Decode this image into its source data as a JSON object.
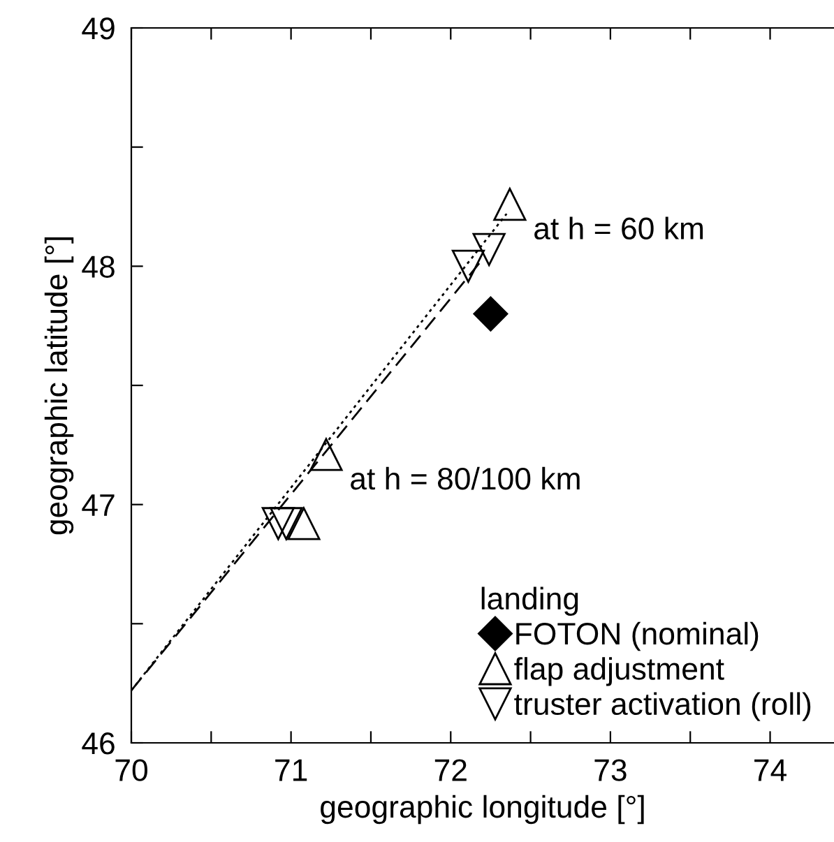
{
  "chart_data": {
    "type": "scatter",
    "xlabel": "geographic longitude [°]",
    "ylabel": "geographic latitude [°]",
    "legend_title": "landing",
    "legend": "bottom right",
    "grid": false,
    "xlim": [
      70,
      74.4
    ],
    "ylim": [
      46,
      49
    ],
    "xticks": [
      70,
      {
        "value": 70.5,
        "label": null
      },
      71,
      {
        "value": 71.5,
        "label": null
      },
      72,
      {
        "value": 72.5,
        "label": null
      },
      73,
      {
        "value": 73.5,
        "label": null
      },
      74
    ],
    "yticks": [
      46,
      {
        "value": 46.5,
        "label": null
      },
      47,
      {
        "value": 47.5,
        "label": null
      },
      48,
      {
        "value": 48.5,
        "label": null
      },
      49
    ],
    "series": [
      {
        "type": "line",
        "x": [
          70,
          72.35
        ],
        "values": [
          46.22,
          48.22
        ],
        "color": "#000000",
        "line_style": "dotted",
        "marker": "none"
      },
      {
        "type": "line",
        "x": [
          70,
          72.2
        ],
        "values": [
          46.22,
          48.03
        ],
        "color": "#000000",
        "line_style": "dashed",
        "marker": "none"
      },
      {
        "name": "FOTON (nominal)",
        "x": [
          72.25
        ],
        "values": [
          47.8
        ],
        "color": "#000000",
        "marker": "diamond"
      },
      {
        "name": "flap adjustment",
        "x": [
          72.37,
          71.22,
          71.08
        ],
        "values": [
          48.26,
          47.21,
          46.92
        ],
        "color": "#000000",
        "marker": "triangle"
      },
      {
        "name": "truster activation (roll)",
        "x": [
          72.24,
          72.11,
          70.92,
          70.97
        ],
        "values": [
          48.07,
          48.0,
          46.92,
          46.92
        ],
        "color": "#000000",
        "marker": "triangle_down"
      }
    ],
    "annotations": [
      {
        "text": "at h = 60 km",
        "x": 72.37,
        "y": 48.26
      },
      {
        "text": "at h = 80/100 km",
        "x": 71.22,
        "y": 47.21
      }
    ]
  }
}
